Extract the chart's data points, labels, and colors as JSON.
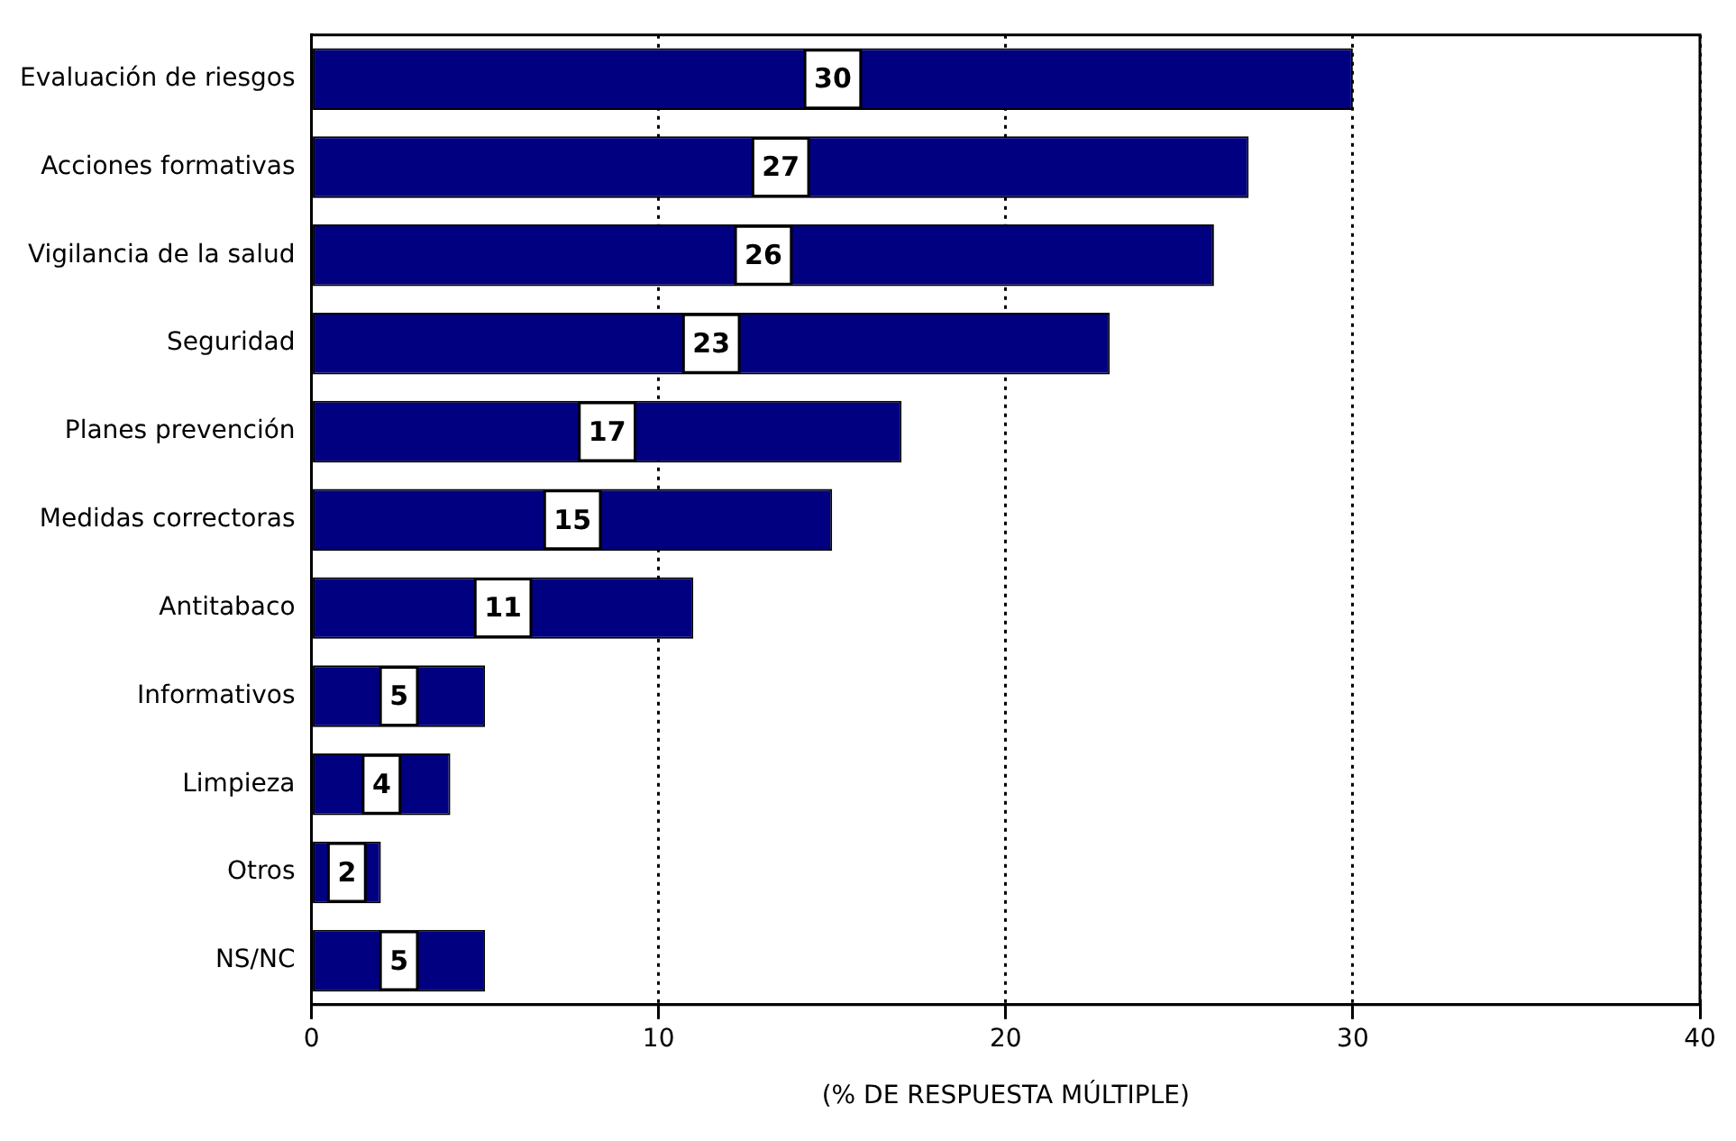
{
  "chart_data": {
    "type": "bar",
    "orientation": "horizontal",
    "xlabel": "(% DE RESPUESTA MÚLTIPLE)",
    "categories": [
      "Evaluación de riesgos",
      "Acciones formativas",
      "Vigilancia de la salud",
      "Seguridad",
      "Planes prevención",
      "Medidas correctoras",
      "Antitabaco",
      "Informativos",
      "Limpieza",
      "Otros",
      "NS/NC"
    ],
    "values": [
      30,
      27,
      26,
      23,
      17,
      15,
      11,
      5,
      4,
      2,
      5
    ],
    "color": "#000080",
    "xlim": [
      0,
      40
    ],
    "xticks": [
      0,
      10,
      20,
      30,
      40
    ],
    "grid": "x",
    "line_style": "dotted",
    "data_labels": true,
    "legend": false
  }
}
